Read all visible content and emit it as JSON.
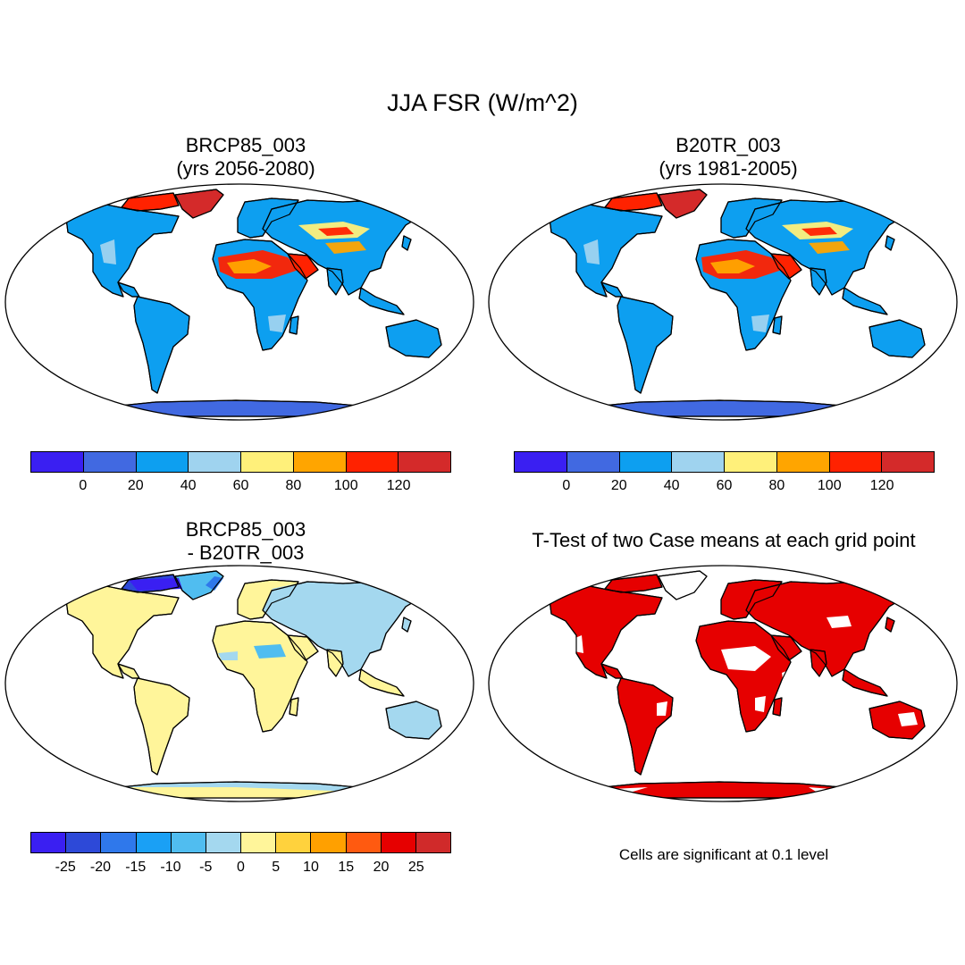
{
  "title": "JJA FSR (W/m^2)",
  "panels": [
    {
      "line1": "BRCP85_003",
      "line2": "(yrs 2056-2080)"
    },
    {
      "line1": "B20TR_003",
      "line2": "(yrs 1981-2005)"
    },
    {
      "line1": "BRCP85_003",
      "line2": "- B20TR_003"
    },
    {
      "line1": "T-Test of two Case means at each grid point",
      "line2": ""
    }
  ],
  "colorbar_abs": {
    "colors": [
      "#3a1ff2",
      "#4169e1",
      "#0d9ff0",
      "#9fd3ef",
      "#fff07a",
      "#ffa500",
      "#ff2200",
      "#d42a2a"
    ],
    "labels": [
      "0",
      "20",
      "40",
      "60",
      "80",
      "100",
      "120"
    ]
  },
  "colorbar_diff": {
    "colors": [
      "#3a1ff2",
      "#2d49d8",
      "#2f78eb",
      "#1aa0f5",
      "#50bdf0",
      "#a4d8ef",
      "#fff59a",
      "#ffd23d",
      "#ffa000",
      "#ff5a10",
      "#e60000",
      "#d02a2a"
    ],
    "labels": [
      "-25",
      "-20",
      "-15",
      "-10",
      "-5",
      "0",
      "5",
      "10",
      "15",
      "20",
      "25"
    ]
  },
  "note": "Cells are significant at 0.1 level"
}
